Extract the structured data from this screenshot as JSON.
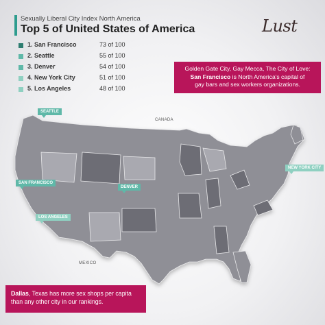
{
  "header": {
    "subtitle": "Sexually Liberal City Index North America",
    "title": "Top 5 of United States of America",
    "logo": "Lust"
  },
  "ranking": [
    {
      "label": "1. San Francisco",
      "score": "73 of 100",
      "color": "#2e7d70"
    },
    {
      "label": "2. Seattle",
      "score": "55 of 100",
      "color": "#5fb8a8"
    },
    {
      "label": "3. Denver",
      "score": "54 of 100",
      "color": "#5fb8a8"
    },
    {
      "label": "4. New York City",
      "score": "51 of 100",
      "color": "#8fd0c1"
    },
    {
      "label": "5. Los Angeles",
      "score": "48 of 100",
      "color": "#8fd0c1"
    }
  ],
  "callout_top": {
    "line1": "Golden Gate City, Gay Mecca, The City of Love:",
    "highlight": "San Francisco",
    "line2_rest": " is North America's capital of",
    "line3": "gay bars and sex workers organizations."
  },
  "callout_bottom": {
    "highlight": "Dallas",
    "rest": ", Texas has more sex shops per capita than any other city in our rankings."
  },
  "map": {
    "canada_label": "CANADA",
    "mexico_label": "MEXICO",
    "pins": {
      "seattle": "SEATTLE",
      "san_francisco": "SAN FRANCISCO",
      "denver": "DENVER",
      "los_angeles": "LOS ANGELES",
      "new_york_city": "NEW YORK CITY"
    }
  },
  "colors": {
    "accent": "#b8155a",
    "teal_dark": "#2e7d70",
    "teal": "#5fb8a8",
    "teal_light": "#8fd0c1",
    "map_fill": "#8f8f96",
    "map_dark": "#6d6d74"
  }
}
